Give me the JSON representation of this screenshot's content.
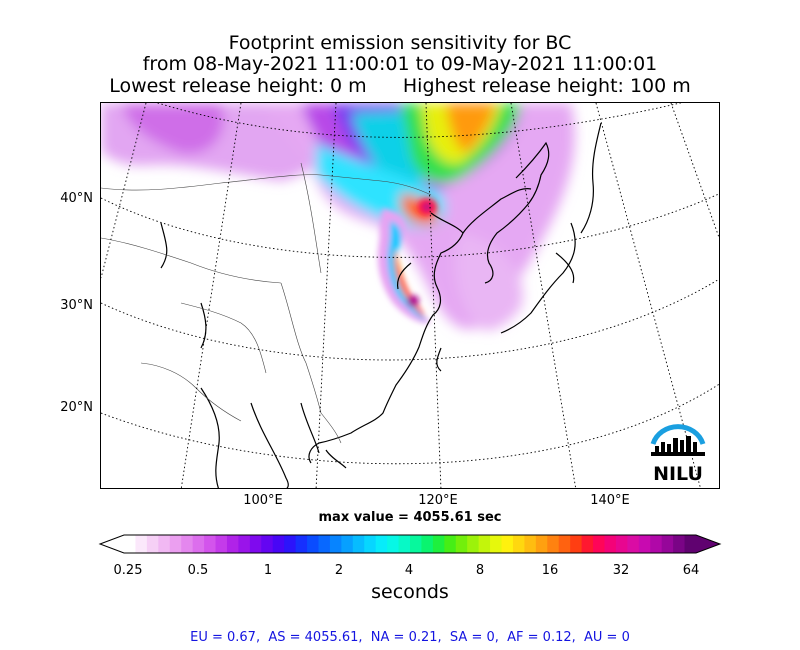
{
  "title": {
    "line1": "Footprint emission sensitivity for BC",
    "line2": "from 08-May-2021 11:00:01 to 09-May-2021 11:00:01",
    "line3": "Lowest release height: 0 m      Highest release height: 100 m"
  },
  "map": {
    "lat_labels": [
      "40°N",
      "30°N",
      "20°N"
    ],
    "lon_labels": [
      "100°E",
      "120°E",
      "140°E"
    ],
    "logo_text": "NILU",
    "logo_color": "#1a9fe0"
  },
  "max_value": "max value = 4055.61 sec",
  "colorbar": {
    "tick_labels": [
      "0.25",
      "0.5",
      "1",
      "2",
      "4",
      "8",
      "16",
      "32",
      "64"
    ],
    "units": "seconds",
    "colors": [
      "#ffffff",
      "#fbe8fb",
      "#f6d0f6",
      "#f1b8f3",
      "#eb9ff0",
      "#e487ee",
      "#dc6eed",
      "#d354ec",
      "#c43bea",
      "#b023e8",
      "#9a14ea",
      "#7f0aee",
      "#6405f2",
      "#4806f6",
      "#2c14fb",
      "#1630fe",
      "#0a4cff",
      "#0868ff",
      "#0784ff",
      "#07a0ff",
      "#07bcff",
      "#07d6ff",
      "#07ecfa",
      "#07f7e6",
      "#07f9c6",
      "#07f89d",
      "#0af46f",
      "#1ef03e",
      "#46ee16",
      "#72ef0b",
      "#9cf20a",
      "#c3f50b",
      "#e6f80c",
      "#fff10e",
      "#ffd80f",
      "#ffbd10",
      "#ffa010",
      "#ff8210",
      "#ff6210",
      "#ff3e12",
      "#ff1830",
      "#ff0558",
      "#f40278",
      "#e80690",
      "#da0ca4",
      "#c80ab0",
      "#b008a8",
      "#96069a",
      "#7a0486",
      "#600270"
    ]
  },
  "regions_text": "EU = 0.67,  AS = 4055.61,  NA = 0.21,  SA = 0,  AF = 0.12,  AU = 0"
}
